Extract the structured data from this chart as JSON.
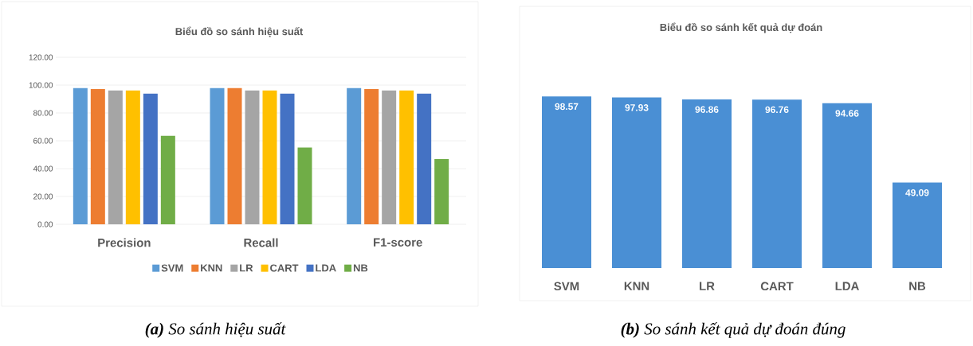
{
  "chart_data": [
    {
      "type": "bar",
      "title": "Biểu đồ so sánh hiệu suất",
      "categories": [
        "Precision",
        "Recall",
        "F1-score"
      ],
      "series": [
        {
          "name": "SVM",
          "color": "#5b9bd5",
          "values": [
            97.8,
            97.9,
            97.9
          ]
        },
        {
          "name": "KNN",
          "color": "#ed7d31",
          "values": [
            97.2,
            97.9,
            97.2
          ]
        },
        {
          "name": "LR",
          "color": "#a5a5a5",
          "values": [
            96.1,
            96.1,
            96.1
          ]
        },
        {
          "name": "CART",
          "color": "#ffc000",
          "values": [
            96.1,
            96.1,
            96.1
          ]
        },
        {
          "name": "LDA",
          "color": "#4472c4",
          "values": [
            93.9,
            93.9,
            93.9
          ]
        },
        {
          "name": "NB",
          "color": "#70ad47",
          "values": [
            63.5,
            55.1,
            46.8
          ]
        }
      ],
      "ylim": [
        0,
        120
      ],
      "yticks": [
        {
          "value": 0,
          "label": "0.00"
        },
        {
          "value": 20,
          "label": "20.00"
        },
        {
          "value": 40,
          "label": "40.00"
        },
        {
          "value": 60,
          "label": "60.00"
        },
        {
          "value": 80,
          "label": "80.00"
        },
        {
          "value": 100,
          "label": "100.00"
        },
        {
          "value": 120,
          "label": "120.00"
        }
      ],
      "grid": "y",
      "legend": "bottom",
      "annotations": [
        "**(a)** So sánh hiệu suất"
      ]
    },
    {
      "type": "bar",
      "title": "Biểu đồ so sánh kết quả dự đoán",
      "categories": [
        "SVM",
        "KNN",
        "LR",
        "CART",
        "LDA",
        "NB"
      ],
      "values": [
        98.57,
        97.93,
        96.86,
        96.76,
        94.66,
        49.09
      ],
      "color": "#4a8fd4",
      "data_labels": true,
      "annotations": [
        "**(b)** So sánh kết quả dự đoán đúng"
      ]
    }
  ]
}
